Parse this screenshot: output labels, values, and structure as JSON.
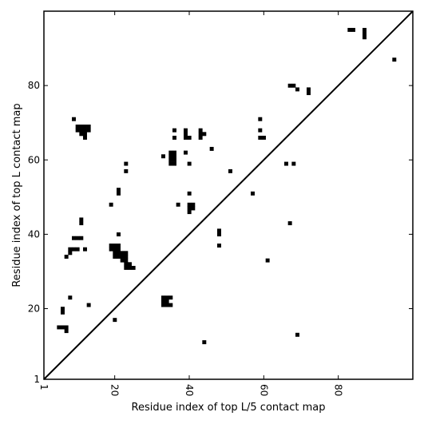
{
  "chart_data": {
    "type": "heatmap",
    "title": "",
    "xlabel": "Residue index of top L/5 contact map",
    "ylabel": "Residue index of top L contact map",
    "xlim": [
      1,
      100
    ],
    "ylim": [
      1,
      100
    ],
    "x_ticks": [
      1,
      20,
      40,
      60,
      80
    ],
    "y_ticks": [
      1,
      20,
      40,
      60,
      80
    ],
    "x_tick_labels": [
      "1",
      "20",
      "40",
      "60",
      "80"
    ],
    "y_tick_labels": [
      "1",
      "20",
      "40",
      "60",
      "80"
    ],
    "grid": false,
    "diagonal_line": true,
    "colors": {
      "contact": "#000000",
      "background": "#ffffff",
      "frame": "#000000"
    },
    "cell_size": 1,
    "upper_triangle_source": "top L contact map",
    "lower_triangle_source": "top L/5 contact map",
    "contacts": [
      [
        9,
        71
      ],
      [
        10,
        68
      ],
      [
        10,
        69
      ],
      [
        11,
        68
      ],
      [
        11,
        69
      ],
      [
        12,
        69
      ],
      [
        12,
        68
      ],
      [
        11,
        67
      ],
      [
        12,
        67
      ],
      [
        12,
        66
      ],
      [
        13,
        68
      ],
      [
        13,
        69
      ],
      [
        9,
        39
      ],
      [
        10,
        39
      ],
      [
        11,
        39
      ],
      [
        8,
        36
      ],
      [
        9,
        36
      ],
      [
        8,
        35
      ],
      [
        10,
        36
      ],
      [
        12,
        36
      ],
      [
        7,
        34
      ],
      [
        11,
        44
      ],
      [
        11,
        43
      ],
      [
        8,
        23
      ],
      [
        6,
        20
      ],
      [
        6,
        19
      ],
      [
        13,
        21
      ],
      [
        5,
        15
      ],
      [
        6,
        15
      ],
      [
        7,
        15
      ],
      [
        7,
        14
      ],
      [
        19,
        48
      ],
      [
        19,
        37
      ],
      [
        20,
        37
      ],
      [
        21,
        37
      ],
      [
        19,
        36
      ],
      [
        20,
        36
      ],
      [
        21,
        36
      ],
      [
        20,
        35
      ],
      [
        21,
        35
      ],
      [
        22,
        35
      ],
      [
        23,
        35
      ],
      [
        20,
        34
      ],
      [
        21,
        34
      ],
      [
        22,
        34
      ],
      [
        23,
        34
      ],
      [
        22,
        33
      ],
      [
        23,
        33
      ],
      [
        23,
        32
      ],
      [
        24,
        32
      ],
      [
        23,
        31
      ],
      [
        24,
        31
      ],
      [
        25,
        31
      ],
      [
        21,
        40
      ],
      [
        21,
        52
      ],
      [
        21,
        51
      ],
      [
        23,
        59
      ],
      [
        23,
        57
      ],
      [
        33,
        61
      ],
      [
        35,
        62
      ],
      [
        36,
        62
      ],
      [
        35,
        61
      ],
      [
        36,
        61
      ],
      [
        35,
        60
      ],
      [
        36,
        60
      ],
      [
        35,
        59
      ],
      [
        36,
        59
      ],
      [
        36,
        68
      ],
      [
        36,
        66
      ],
      [
        39,
        68
      ],
      [
        39,
        67
      ],
      [
        39,
        66
      ],
      [
        40,
        66
      ],
      [
        39,
        62
      ],
      [
        40,
        59
      ],
      [
        37,
        48
      ],
      [
        40,
        51
      ],
      [
        40,
        48
      ],
      [
        41,
        48
      ],
      [
        40,
        47
      ],
      [
        41,
        47
      ],
      [
        40,
        46
      ],
      [
        43,
        68
      ],
      [
        43,
        67
      ],
      [
        44,
        67
      ],
      [
        43,
        66
      ],
      [
        46,
        63
      ],
      [
        48,
        41
      ],
      [
        48,
        40
      ],
      [
        48,
        37
      ],
      [
        51,
        57
      ],
      [
        57,
        51
      ],
      [
        59,
        71
      ],
      [
        59,
        68
      ],
      [
        59,
        66
      ],
      [
        60,
        66
      ],
      [
        61,
        33
      ],
      [
        66,
        59
      ],
      [
        68,
        59
      ],
      [
        67,
        43
      ],
      [
        67,
        80
      ],
      [
        68,
        80
      ],
      [
        69,
        79
      ],
      [
        72,
        79
      ],
      [
        72,
        78
      ],
      [
        83,
        95
      ],
      [
        84,
        95
      ],
      [
        87,
        95
      ],
      [
        87,
        94
      ],
      [
        87,
        93
      ],
      [
        95,
        87
      ],
      [
        33,
        23
      ],
      [
        34,
        23
      ],
      [
        35,
        23
      ],
      [
        33,
        22
      ],
      [
        34,
        22
      ],
      [
        33,
        21
      ],
      [
        34,
        21
      ],
      [
        35,
        21
      ],
      [
        20,
        17
      ],
      [
        44,
        11
      ],
      [
        69,
        13
      ]
    ]
  }
}
